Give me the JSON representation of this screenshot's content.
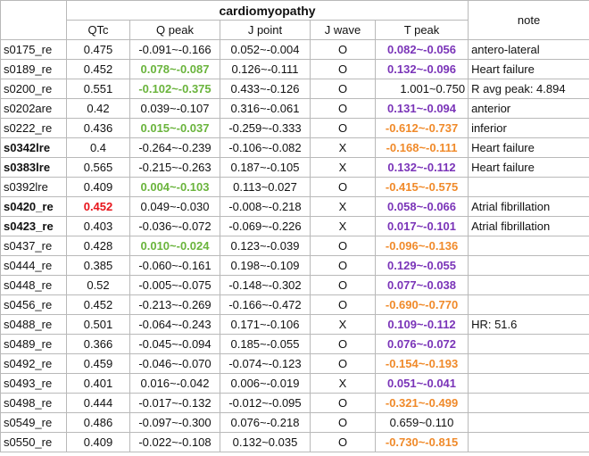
{
  "header": {
    "group_title": "cardiomyopathy",
    "note_label": "note",
    "columns": [
      "QTc",
      "Q peak",
      "J point",
      "J wave",
      "T peak"
    ]
  },
  "colors": {
    "red": "#e8141b",
    "green": "#6ab43c",
    "purple": "#7a34b8",
    "orange": "#f08a2a"
  },
  "rows": [
    {
      "id": "s0175_re",
      "qtc": "0.475",
      "qpeak": "-0.091~-0.166",
      "jpoint": "0.052~-0.004",
      "jwave": "O",
      "tpeak": "0.082~-0.056",
      "note": "antero-lateral"
    },
    {
      "id": "s0189_re",
      "qtc": "0.452",
      "qpeak": "0.078~-0.087",
      "jpoint": "0.126~-0.111",
      "jwave": "O",
      "tpeak": "0.132~-0.096",
      "note": "Heart failure"
    },
    {
      "id": "s0200_re",
      "qtc": "0.551",
      "qpeak": "-0.102~-0.375",
      "jpoint": "0.433~-0.126",
      "jwave": "O",
      "tpeak": "1.001~0.750",
      "note": "R avg peak: 4.894"
    },
    {
      "id": "s0202are",
      "qtc": "0.42",
      "qpeak": "0.039~-0.107",
      "jpoint": "0.316~-0.061",
      "jwave": "O",
      "tpeak": "0.131~-0.094",
      "note": "anterior"
    },
    {
      "id": "s0222_re",
      "qtc": "0.436",
      "qpeak": "0.015~-0.037",
      "jpoint": "-0.259~-0.333",
      "jwave": "O",
      "tpeak": "-0.612~-0.737",
      "note": " inferior"
    },
    {
      "id": "s0342lre",
      "qtc": "0.4",
      "qpeak": "-0.264~-0.239",
      "jpoint": "-0.106~-0.082",
      "jwave": "X",
      "tpeak": "-0.168~-0.111",
      "note": "Heart failure"
    },
    {
      "id": "s0383lre",
      "qtc": "0.565",
      "qpeak": "-0.215~-0.263",
      "jpoint": "0.187~-0.105",
      "jwave": "X",
      "tpeak": "0.132~-0.112",
      "note": "Heart failure"
    },
    {
      "id": "s0392lre",
      "qtc": "0.409",
      "qpeak": "0.004~-0.103",
      "jpoint": "0.113~0.027",
      "jwave": "O",
      "tpeak": "-0.415~-0.575",
      "note": ""
    },
    {
      "id": "s0420_re",
      "qtc": "0.452",
      "qpeak": "0.049~-0.030",
      "jpoint": "-0.008~-0.218",
      "jwave": "X",
      "tpeak": "0.058~-0.066",
      "note": "Atrial fibrillation"
    },
    {
      "id": "s0423_re",
      "qtc": "0.403",
      "qpeak": "-0.036~-0.072",
      "jpoint": "-0.069~-0.226",
      "jwave": "X",
      "tpeak": "0.017~-0.101",
      "note": "Atrial fibrillation"
    },
    {
      "id": "s0437_re",
      "qtc": "0.428",
      "qpeak": "0.010~-0.024",
      "jpoint": "0.123~-0.039",
      "jwave": "O",
      "tpeak": "-0.096~-0.136",
      "note": ""
    },
    {
      "id": "s0444_re",
      "qtc": "0.385",
      "qpeak": "-0.060~-0.161",
      "jpoint": "0.198~-0.109",
      "jwave": "O",
      "tpeak": "0.129~-0.055",
      "note": ""
    },
    {
      "id": "s0448_re",
      "qtc": "0.52",
      "qpeak": "-0.005~-0.075",
      "jpoint": "-0.148~-0.302",
      "jwave": "O",
      "tpeak": "0.077~-0.038",
      "note": ""
    },
    {
      "id": "s0456_re",
      "qtc": "0.452",
      "qpeak": "-0.213~-0.269",
      "jpoint": "-0.166~-0.472",
      "jwave": "O",
      "tpeak": "-0.690~-0.770",
      "note": ""
    },
    {
      "id": "s0488_re",
      "qtc": "0.501",
      "qpeak": "-0.064~-0.243",
      "jpoint": "0.171~-0.106",
      "jwave": "X",
      "tpeak": "0.109~-0.112",
      "note": "HR: 51.6"
    },
    {
      "id": "s0489_re",
      "qtc": "0.366",
      "qpeak": "-0.045~-0.094",
      "jpoint": "0.185~-0.055",
      "jwave": "O",
      "tpeak": "0.076~-0.072",
      "note": ""
    },
    {
      "id": "s0492_re",
      "qtc": "0.459",
      "qpeak": "-0.046~-0.070",
      "jpoint": "-0.074~-0.123",
      "jwave": "O",
      "tpeak": "-0.154~-0.193",
      "note": ""
    },
    {
      "id": "s0493_re",
      "qtc": "0.401",
      "qpeak": "0.016~-0.042",
      "jpoint": "0.006~-0.019",
      "jwave": "X",
      "tpeak": "0.051~-0.041",
      "note": ""
    },
    {
      "id": "s0498_re",
      "qtc": "0.444",
      "qpeak": "-0.017~-0.132",
      "jpoint": "-0.012~-0.095",
      "jwave": "O",
      "tpeak": "-0.321~-0.499",
      "note": ""
    },
    {
      "id": "s0549_re",
      "qtc": "0.486",
      "qpeak": "-0.097~-0.300",
      "jpoint": "0.076~-0.218",
      "jwave": "O",
      "tpeak": "0.659~0.110",
      "note": ""
    },
    {
      "id": "s0550_re",
      "qtc": "0.409",
      "qpeak": "-0.022~-0.108",
      "jpoint": "0.132~0.035",
      "jwave": "O",
      "tpeak": "-0.730~-0.815",
      "note": ""
    }
  ]
}
